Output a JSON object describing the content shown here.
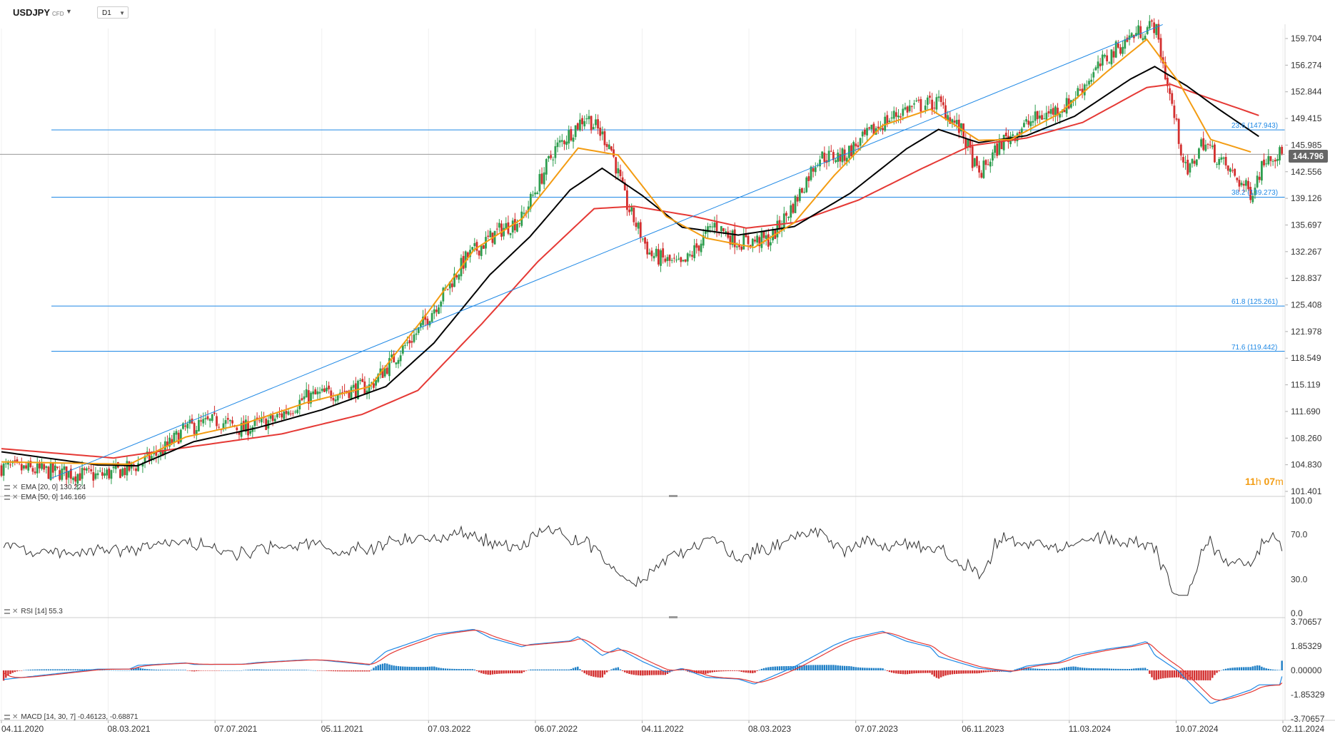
{
  "header": {
    "symbol": "USDJPY",
    "instrument_type": "CFD",
    "timeframe": "D1"
  },
  "price_axis": {
    "ticks": [
      "159.704",
      "156.274",
      "152.844",
      "149.415",
      "145.985",
      "142.556",
      "139.126",
      "135.697",
      "132.267",
      "128.837",
      "125.408",
      "121.978",
      "118.549",
      "115.119",
      "111.690",
      "108.260",
      "104.830",
      "101.401"
    ]
  },
  "current_price": "144.796",
  "countdown": {
    "hours": "11",
    "h_unit": "h",
    "minutes": "07",
    "m_unit": "m"
  },
  "fib_levels": [
    {
      "label": "23.6 (147.943)",
      "value": 147.943
    },
    {
      "label": "38.2 (139.273)",
      "value": 139.273
    },
    {
      "label": "61.8 (125.261)",
      "value": 125.261
    },
    {
      "label": "71.6 (119.442)",
      "value": 119.442
    }
  ],
  "main_legend": [
    {
      "text": "EMA [20, 0] 130.224",
      "color": "#f39c12"
    },
    {
      "text": "EMA [50, 0] 146.166",
      "color": "#000000"
    }
  ],
  "rsi": {
    "legend": "RSI [14] 55.3",
    "ticks": [
      "100.0",
      "70.0",
      "30.0",
      "0.0"
    ]
  },
  "macd": {
    "legend": "MACD [14, 30, 7] -0.46123, -0.68871",
    "ticks": [
      "3.70657",
      "1.85329",
      "0.00000",
      "-1.85329",
      "-3.70657"
    ]
  },
  "date_axis": [
    "04.11.2020",
    "08.03.2021",
    "07.07.2021",
    "05.11.2021",
    "07.03.2022",
    "06.07.2022",
    "04.11.2022",
    "08.03.2023",
    "07.07.2023",
    "06.11.2023",
    "11.03.2024",
    "10.07.2024",
    "02.11.2024"
  ],
  "colors": {
    "up": "#2e9e4f",
    "down": "#d32f2f",
    "ema_fast": "#f39c12",
    "ema_mid": "#000000",
    "ema_slow": "#e53935",
    "trendline": "#1e88e5",
    "fib": "#1e88e5",
    "macd_pos": "#1e7fc6",
    "macd_neg": "#d32f2f"
  },
  "chart_data": {
    "type": "candlestick",
    "title": "USDJPY",
    "x_range": [
      "04.11.2020",
      "02.11.2024"
    ],
    "ylim": [
      101.401,
      159.704
    ],
    "close_path": [
      [
        0,
        104.5
      ],
      [
        12,
        103.4
      ],
      [
        16,
        104.3
      ],
      [
        20,
        106.5
      ],
      [
        23,
        109.5
      ],
      [
        27,
        110.5
      ],
      [
        30,
        109.4
      ],
      [
        34,
        110.6
      ],
      [
        38,
        113.5
      ],
      [
        42,
        114.2
      ],
      [
        46,
        114.9
      ],
      [
        49,
        118.5
      ],
      [
        52,
        122.0
      ],
      [
        55,
        126.5
      ],
      [
        58,
        131.4
      ],
      [
        62,
        134.9
      ],
      [
        65,
        136.5
      ],
      [
        69,
        145.3
      ],
      [
        73,
        149.8
      ],
      [
        76,
        146.0
      ],
      [
        78,
        138.5
      ],
      [
        81,
        131.9
      ],
      [
        85,
        130.3
      ],
      [
        89,
        135.8
      ],
      [
        92,
        133.5
      ],
      [
        96,
        133.8
      ],
      [
        99,
        138.5
      ],
      [
        102,
        144.5
      ],
      [
        105,
        144.5
      ],
      [
        110,
        148.8
      ],
      [
        113,
        150.7
      ],
      [
        117,
        151.5
      ],
      [
        120,
        147.5
      ],
      [
        122,
        142.0
      ],
      [
        125,
        146.5
      ],
      [
        129,
        149.3
      ],
      [
        133,
        151.1
      ],
      [
        138,
        157.2
      ],
      [
        141,
        160.0
      ],
      [
        144,
        161.5
      ],
      [
        146,
        151.8
      ],
      [
        148,
        142.0
      ],
      [
        150,
        146.5
      ],
      [
        153,
        143.0
      ],
      [
        156,
        139.8
      ],
      [
        158,
        144.8
      ]
    ],
    "ema_fast": [
      [
        0,
        105.2
      ],
      [
        16,
        104.9
      ],
      [
        23,
        108.4
      ],
      [
        30,
        110.0
      ],
      [
        38,
        112.8
      ],
      [
        46,
        114.9
      ],
      [
        53,
        124.1
      ],
      [
        59,
        132.5
      ],
      [
        65,
        136.5
      ],
      [
        72,
        145.6
      ],
      [
        77,
        144.7
      ],
      [
        83,
        136.8
      ],
      [
        88,
        134.0
      ],
      [
        94,
        132.8
      ],
      [
        99,
        136.0
      ],
      [
        104,
        142.1
      ],
      [
        110,
        148.5
      ],
      [
        116,
        150.6
      ],
      [
        122,
        146.6
      ],
      [
        126,
        146.7
      ],
      [
        132,
        150.0
      ],
      [
        138,
        155.4
      ],
      [
        143,
        159.6
      ],
      [
        147,
        154.1
      ],
      [
        151,
        146.7
      ],
      [
        156,
        145.1
      ]
    ],
    "ema_mid": [
      [
        0,
        106.5
      ],
      [
        12,
        104.8
      ],
      [
        17,
        104.7
      ],
      [
        24,
        107.8
      ],
      [
        32,
        109.6
      ],
      [
        40,
        111.9
      ],
      [
        48,
        114.9
      ],
      [
        54,
        120.5
      ],
      [
        61,
        129.3
      ],
      [
        66,
        134.2
      ],
      [
        71,
        140.2
      ],
      [
        75,
        143.0
      ],
      [
        80,
        139.5
      ],
      [
        85,
        135.4
      ],
      [
        92,
        134.4
      ],
      [
        99,
        135.5
      ],
      [
        106,
        139.8
      ],
      [
        113,
        145.5
      ],
      [
        117,
        148.0
      ],
      [
        122,
        146.3
      ],
      [
        128,
        147.2
      ],
      [
        134,
        149.7
      ],
      [
        141,
        154.5
      ],
      [
        144,
        156.1
      ],
      [
        148,
        153.6
      ],
      [
        152,
        150.6
      ],
      [
        157,
        147.1
      ]
    ],
    "ema_slow": [
      [
        0,
        106.9
      ],
      [
        14,
        105.7
      ],
      [
        24,
        107.2
      ],
      [
        35,
        108.8
      ],
      [
        45,
        111.3
      ],
      [
        52,
        114.4
      ],
      [
        60,
        123.0
      ],
      [
        67,
        131.0
      ],
      [
        74,
        137.8
      ],
      [
        79,
        138.1
      ],
      [
        86,
        136.9
      ],
      [
        93,
        135.3
      ],
      [
        99,
        136.0
      ],
      [
        107,
        138.9
      ],
      [
        115,
        143.0
      ],
      [
        121,
        145.9
      ],
      [
        128,
        146.9
      ],
      [
        135,
        148.9
      ],
      [
        143,
        153.4
      ],
      [
        146,
        153.8
      ],
      [
        150,
        152.3
      ],
      [
        157,
        149.8
      ]
    ],
    "trendline": [
      [
        6,
        103.0
      ],
      [
        145,
        161.5
      ]
    ],
    "rsi_14": [
      55.3
    ],
    "macd_14_30_7": [
      -0.46123,
      -0.68871
    ]
  }
}
